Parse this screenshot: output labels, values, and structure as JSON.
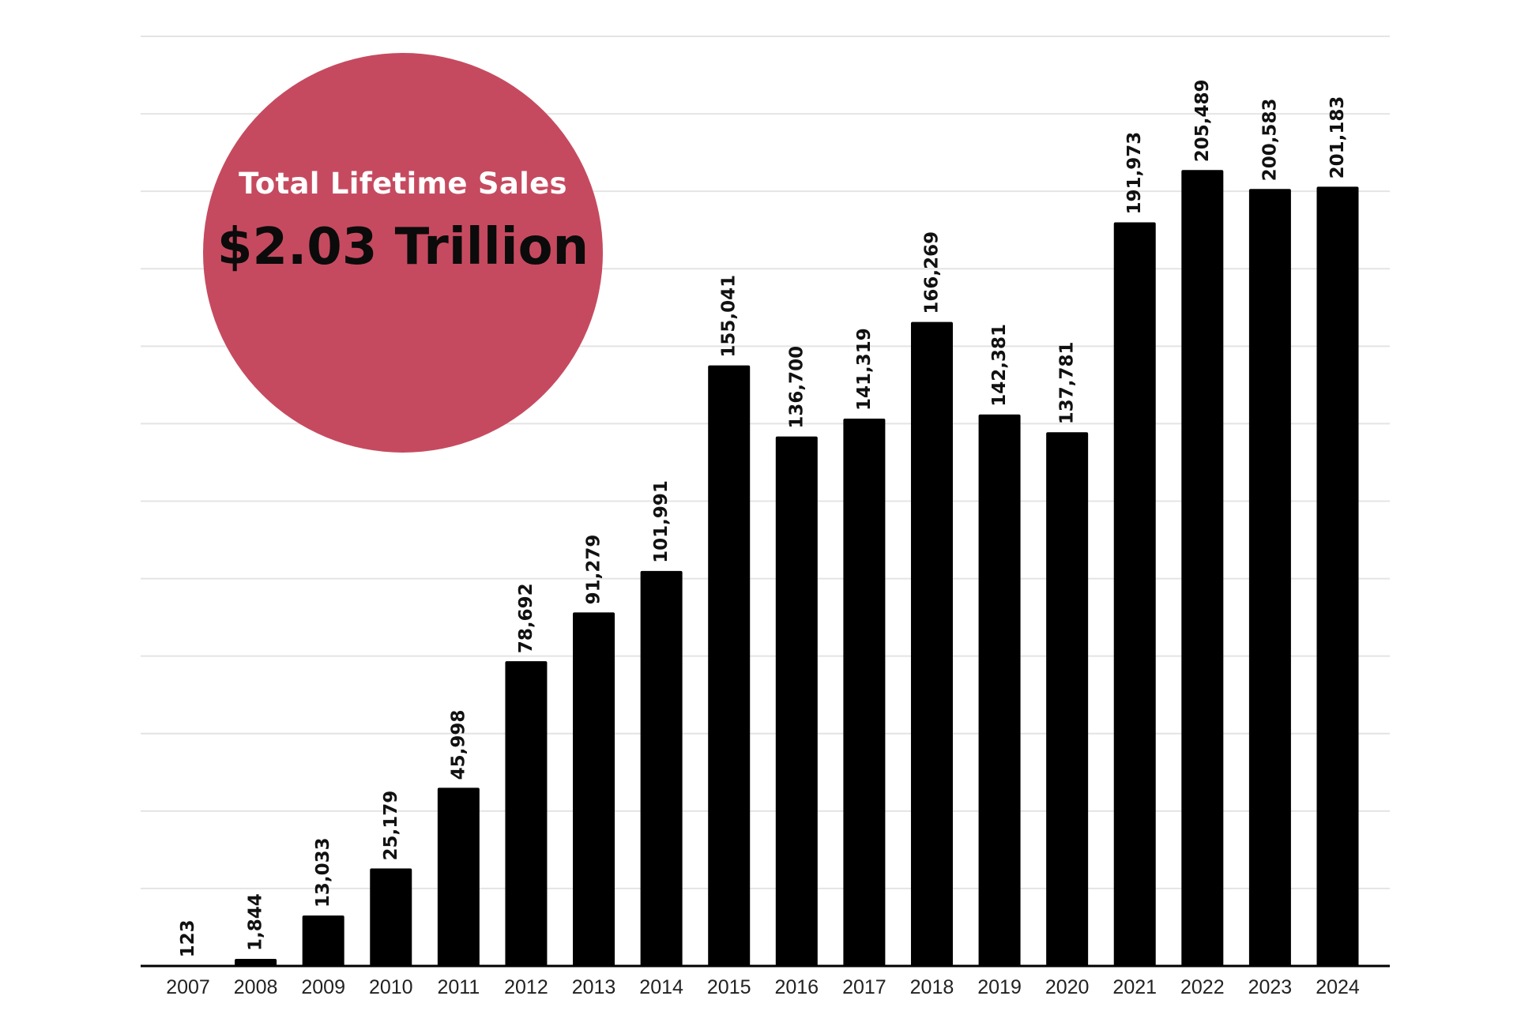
{
  "callout": {
    "label": "Total Lifetime Sales",
    "value": "$2.03 Trillion",
    "color": "#c64a5f"
  },
  "chart_data": {
    "type": "bar",
    "categories": [
      "2007",
      "2008",
      "2009",
      "2010",
      "2011",
      "2012",
      "2013",
      "2014",
      "2015",
      "2016",
      "2017",
      "2018",
      "2019",
      "2020",
      "2021",
      "2022",
      "2023",
      "2024"
    ],
    "values": [
      123,
      1844,
      13033,
      25179,
      45998,
      78692,
      91279,
      101991,
      155041,
      136700,
      141319,
      166269,
      142381,
      137781,
      191973,
      205489,
      200583,
      201183
    ],
    "data_labels": [
      "123",
      "1,844",
      "13,033",
      "25,179",
      "45,998",
      "78,692",
      "91,279",
      "101,991",
      "155,041",
      "136,700",
      "141,319",
      "166,269",
      "142,381",
      "137,781",
      "191,973",
      "205,489",
      "200,583",
      "201,183"
    ],
    "title": "",
    "xlabel": "",
    "ylabel": "",
    "ylim": [
      0,
      240000
    ],
    "grid": true,
    "bar_color": "#000000",
    "grid_color": "#e4e4e4"
  }
}
